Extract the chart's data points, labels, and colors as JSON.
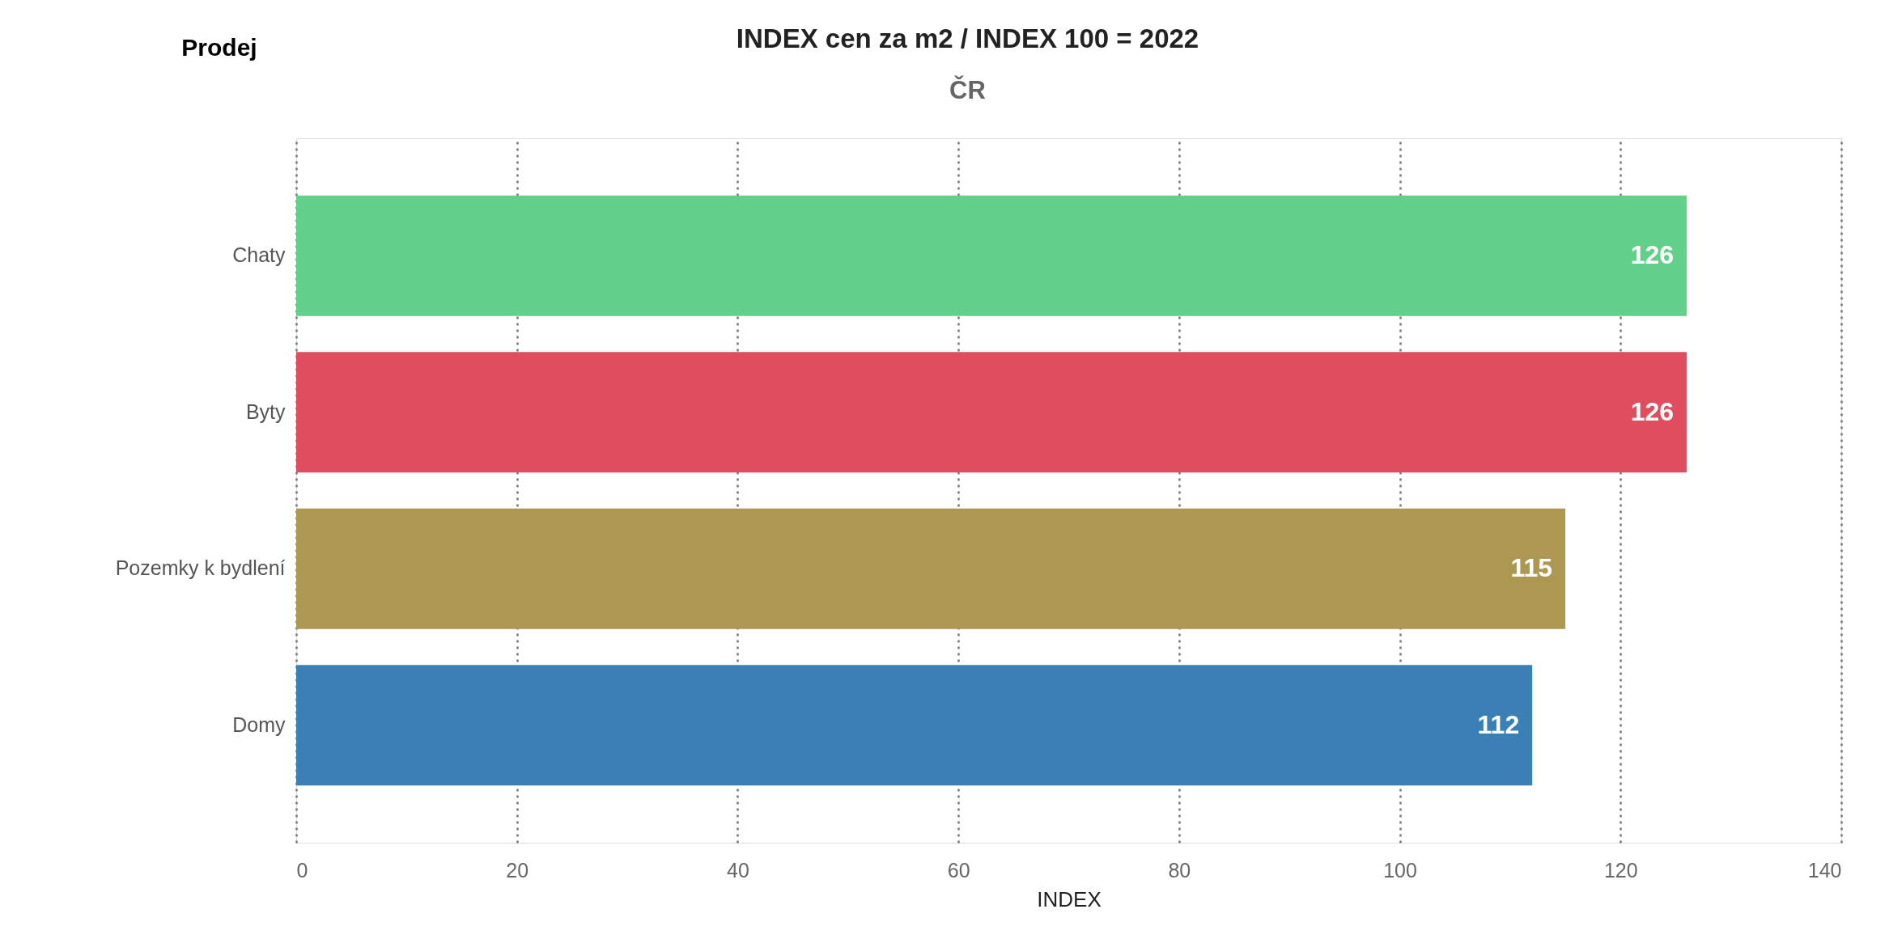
{
  "chart_data": {
    "type": "bar",
    "orientation": "horizontal",
    "title": "INDEX cen za m2 / INDEX 100 = 2022",
    "subtitle": "ČR",
    "xlabel": "INDEX",
    "annotations": [
      "Prodej"
    ],
    "categories": [
      "Chaty",
      "Byty",
      "Pozemky k bydlení",
      "Domy"
    ],
    "values": [
      126,
      126,
      115,
      112
    ],
    "colors": [
      "#62d089",
      "#df4d5f",
      "#ad9852",
      "#3a80b5"
    ],
    "xlim": [
      0,
      140
    ],
    "xticks": [
      0,
      20,
      40,
      60,
      80,
      100,
      120,
      140
    ],
    "grid": "x",
    "data_labels": true
  }
}
